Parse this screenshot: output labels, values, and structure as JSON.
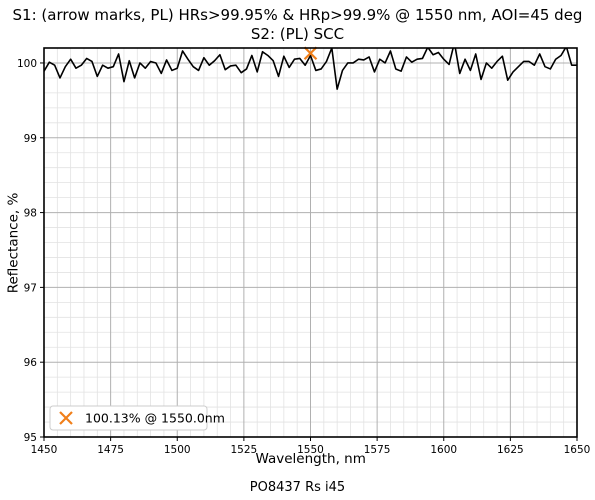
{
  "chart_data": {
    "type": "line",
    "title_line1": "S1: (arrow marks, PL) HRs>99.95% & HRp>99.9% @ 1550 nm, AOI=45 deg",
    "title_line2": "S2: (PL) SCC",
    "xlabel": "Wavelength, nm",
    "ylabel": "Reflectance, %",
    "footer": "PO8437 Rs i45",
    "xlim": [
      1450,
      1650
    ],
    "ylim": [
      95,
      100.2
    ],
    "x_ticks": [
      1450,
      1475,
      1500,
      1525,
      1550,
      1575,
      1600,
      1625,
      1650
    ],
    "y_ticks": [
      95,
      96,
      97,
      98,
      99,
      100
    ],
    "grid": true,
    "series": [
      {
        "color": "#000000",
        "x": [
          1450,
          1452,
          1454,
          1456,
          1458,
          1460,
          1462,
          1464,
          1466,
          1468,
          1470,
          1472,
          1474,
          1476,
          1478,
          1480,
          1482,
          1484,
          1486,
          1488,
          1490,
          1492,
          1494,
          1496,
          1498,
          1500,
          1502,
          1504,
          1506,
          1508,
          1510,
          1512,
          1514,
          1516,
          1518,
          1520,
          1522,
          1524,
          1526,
          1528,
          1530,
          1532,
          1534,
          1536,
          1538,
          1540,
          1542,
          1544,
          1546,
          1548,
          1550,
          1552,
          1554,
          1556,
          1558,
          1560,
          1562,
          1564,
          1566,
          1568,
          1570,
          1572,
          1574,
          1576,
          1578,
          1580,
          1582,
          1584,
          1586,
          1588,
          1590,
          1592,
          1594,
          1596,
          1598,
          1600,
          1602,
          1604,
          1606,
          1608,
          1610,
          1612,
          1614,
          1616,
          1618,
          1620,
          1622,
          1624,
          1626,
          1628,
          1630,
          1632,
          1634,
          1636,
          1638,
          1640,
          1642,
          1644,
          1646,
          1648,
          1650
        ],
        "y": [
          99.89,
          100.01,
          99.97,
          99.8,
          99.95,
          100.05,
          99.93,
          99.97,
          100.06,
          100.02,
          99.82,
          99.97,
          99.93,
          99.95,
          100.12,
          99.75,
          100.03,
          99.8,
          100.0,
          99.93,
          100.02,
          100.0,
          99.86,
          100.04,
          99.9,
          99.93,
          100.16,
          100.05,
          99.95,
          99.9,
          100.07,
          99.97,
          100.03,
          100.11,
          99.91,
          99.96,
          99.97,
          99.87,
          99.92,
          100.1,
          99.88,
          100.15,
          100.1,
          100.03,
          99.82,
          100.09,
          99.94,
          100.05,
          100.06,
          99.97,
          100.1,
          99.9,
          99.92,
          100.02,
          100.2,
          99.65,
          99.9,
          100.0,
          100.0,
          100.05,
          100.04,
          100.08,
          99.88,
          100.05,
          100.0,
          100.16,
          99.92,
          99.89,
          100.08,
          100.01,
          100.05,
          100.06,
          100.21,
          100.11,
          100.14,
          100.05,
          99.98,
          100.27,
          99.86,
          100.05,
          99.9,
          100.12,
          99.78,
          100.0,
          99.93,
          100.02,
          100.09,
          99.77,
          99.88,
          99.95,
          100.02,
          100.02,
          99.97,
          100.12,
          99.95,
          99.92,
          100.05,
          100.1,
          100.22,
          99.97,
          99.97
        ]
      }
    ],
    "marker": {
      "x": 1550.0,
      "y": 100.13,
      "symbol": "x",
      "color": "#f07f1a",
      "label": "100.13% @ 1550.0nm"
    },
    "legend_position": "lower-left"
  }
}
